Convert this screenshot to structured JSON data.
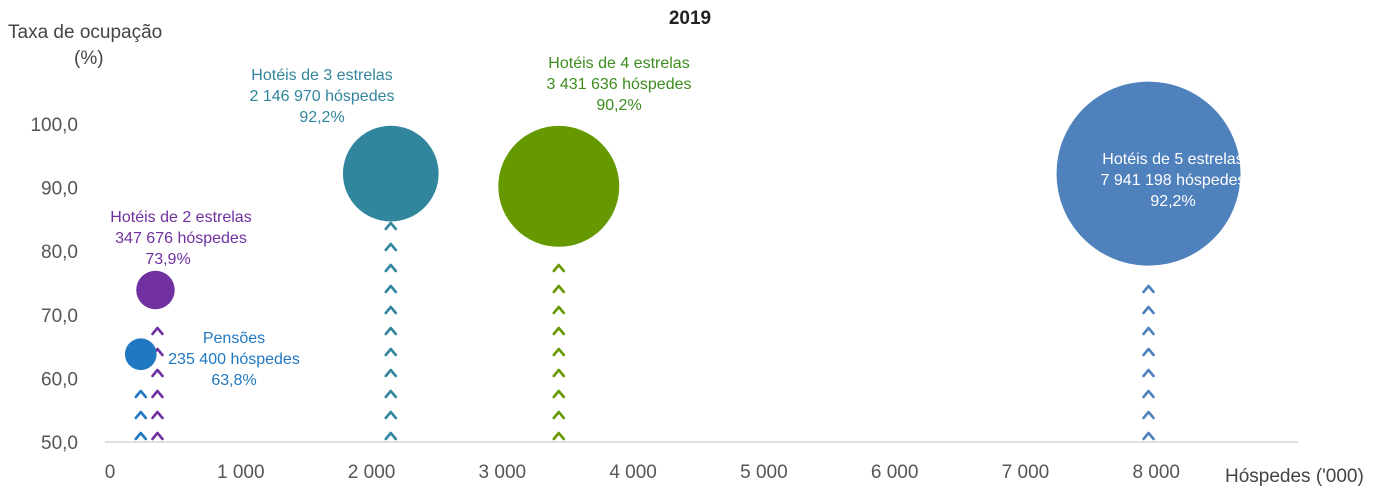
{
  "chart_data": {
    "type": "bubble",
    "title": "2019",
    "ylabel_line1": "Taxa de ocupação",
    "ylabel_line2": "(%)",
    "xlabel": "Hóspedes ('000)",
    "xlim": [
      0,
      9000
    ],
    "ylim": [
      50,
      100
    ],
    "x_ticks": [
      "0",
      "1 000",
      "2 000",
      "3 000",
      "4 000",
      "5 000",
      "6 000",
      "7 000",
      "8 000"
    ],
    "y_ticks": [
      "50,0",
      "60,0",
      "70,0",
      "80,0",
      "90,0",
      "100,0"
    ],
    "series": [
      {
        "name": "Pensões",
        "guests": 235.4,
        "occupancy": 63.8,
        "color": "#1f78c1",
        "label_lines": [
          "Pensões",
          "235 400  hóspedes",
          "63,8%"
        ]
      },
      {
        "name": "Hotéis de 2 estrelas",
        "guests": 347.676,
        "occupancy": 73.9,
        "color": "#7030a0",
        "label_lines": [
          "Hotéis de 2 estrelas",
          "347 676  hóspedes",
          "73,9%"
        ]
      },
      {
        "name": "Hotéis de 3 estrelas",
        "guests": 2146.97,
        "occupancy": 92.2,
        "color": "#31859c",
        "label_lines": [
          "Hotéis de 3 estrelas",
          "2 146 970  hóspedes",
          "92,2%"
        ]
      },
      {
        "name": "Hotéis de 4 estrelas",
        "guests": 3431.636,
        "occupancy": 90.2,
        "color": "#669900",
        "label_color": "#3c8c1e",
        "label_lines": [
          "Hotéis de 4 estrelas",
          "3 431 636  hóspedes",
          "90,2%"
        ]
      },
      {
        "name": "Hotéis de 5 estrelas",
        "guests": 7941.198,
        "occupancy": 92.2,
        "color": "#4f81bd",
        "label_color": "#ffffff",
        "label_lines": [
          "Hotéis de 5 estrelas",
          "7 941 198  hóspedes",
          "92,2%"
        ]
      }
    ]
  }
}
